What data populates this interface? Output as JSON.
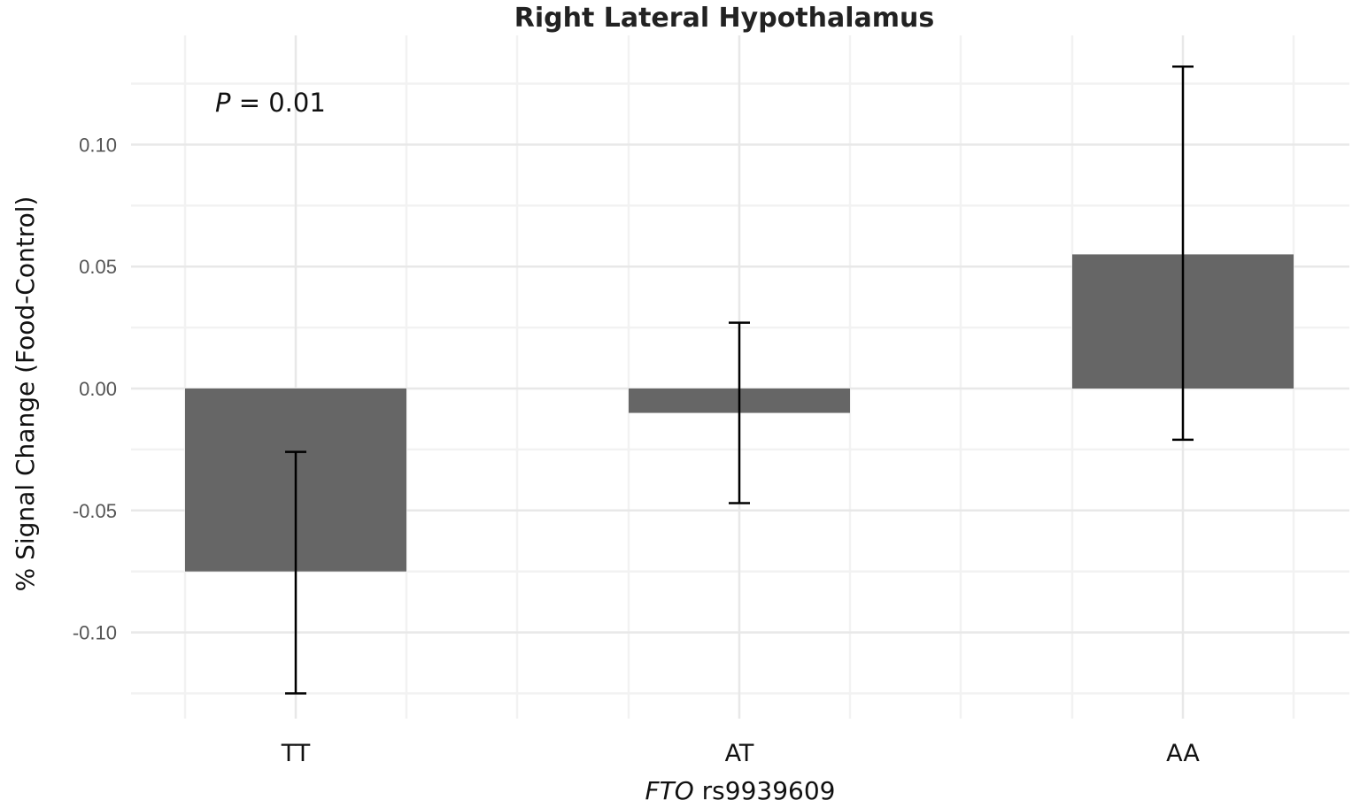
{
  "chart_data": {
    "type": "bar",
    "title": "Right Lateral Hypothalamus",
    "xlabel_italic": "FTO",
    "xlabel_rest": " rs9939609",
    "ylabel": "% Signal Change (Food-Control)",
    "categories": [
      "TT",
      "AT",
      "AA"
    ],
    "values": [
      -0.075,
      -0.01,
      0.055
    ],
    "error_low": [
      -0.125,
      -0.047,
      -0.021
    ],
    "error_high": [
      -0.026,
      0.027,
      0.132
    ],
    "ylim": [
      -0.125,
      0.143
    ],
    "yticks": [
      0.1,
      0.05,
      0.0,
      -0.05,
      -0.1
    ],
    "ytick_labels": [
      "0.10",
      "0.05",
      "0.00",
      "-0.05",
      "-0.10"
    ],
    "grid": true,
    "bar_color": "#666666",
    "annotation": {
      "italic": "P",
      "rest": " = 0.01"
    }
  }
}
